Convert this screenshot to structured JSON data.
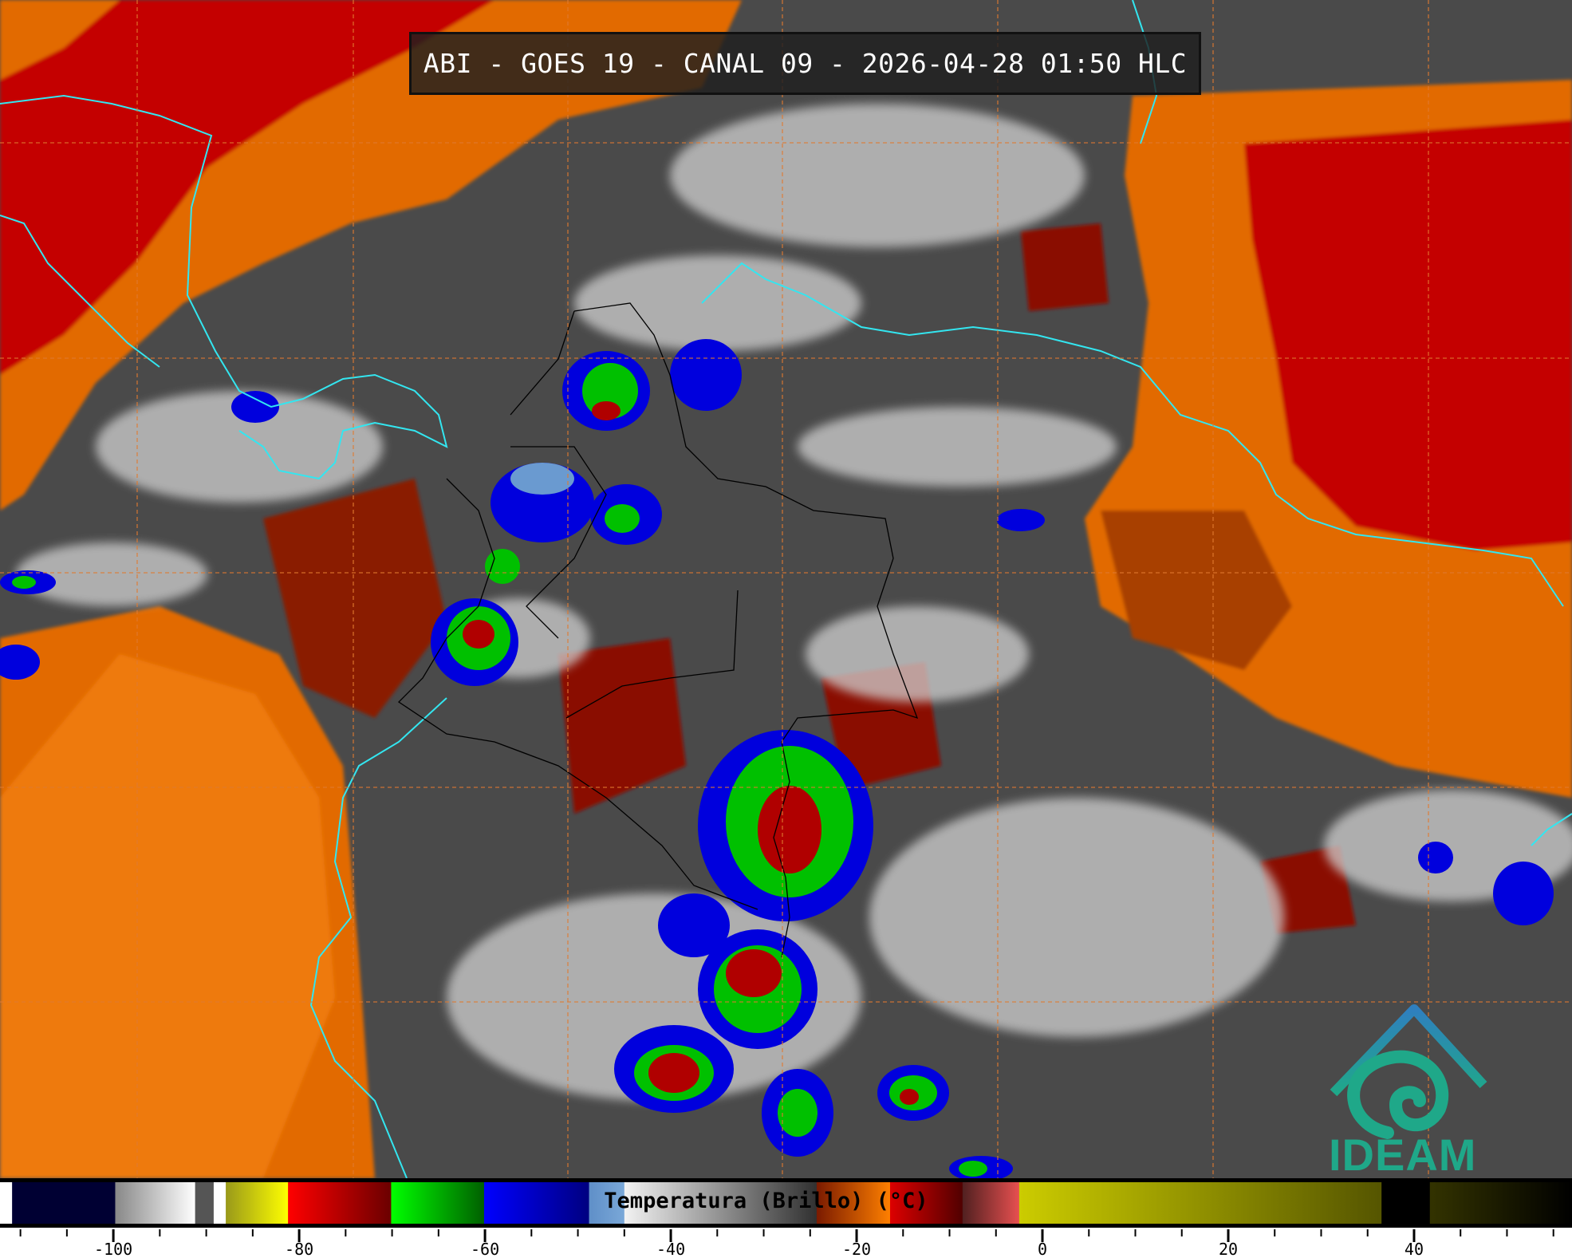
{
  "title": "ABI - GOES 19 - CANAL 09 - 2026-04-28 01:50 HLC",
  "logo": {
    "text": "IDEAM",
    "colors": [
      "#2f7fbf",
      "#1fa889"
    ]
  },
  "colorbar": {
    "label": "Temperatura (Brillo) (°C)",
    "range": [
      -112.2,
      57
    ],
    "tick_step": 5,
    "tick_labels": [
      "-100",
      "-80",
      "-60",
      "-40",
      "-20",
      "0",
      "20",
      "40"
    ],
    "tick_label_values": [
      -100,
      -80,
      -60,
      -40,
      -20,
      0,
      20,
      40
    ],
    "segments": [
      {
        "from": -112.2,
        "to": -110.9,
        "c1": "#ffffff",
        "c2": "#ffffff"
      },
      {
        "from": -110.9,
        "to": -99.8,
        "c1": "#000033",
        "c2": "#000033"
      },
      {
        "from": -99.8,
        "to": -91.2,
        "c1": "#888888",
        "c2": "#ffffff"
      },
      {
        "from": -91.2,
        "to": -89.2,
        "c1": "#555555",
        "c2": "#555555"
      },
      {
        "from": -89.2,
        "to": -87.9,
        "c1": "#ffffff",
        "c2": "#ffffff"
      },
      {
        "from": -87.9,
        "to": -81.2,
        "c1": "#99991a",
        "c2": "#ffff00"
      },
      {
        "from": -81.2,
        "to": -70.1,
        "c1": "#ff0000",
        "c2": "#6a0000"
      },
      {
        "from": -70.1,
        "to": -60.1,
        "c1": "#00ff00",
        "c2": "#005f00"
      },
      {
        "from": -60.1,
        "to": -48.8,
        "c1": "#0000ff",
        "c2": "#000080"
      },
      {
        "from": -48.8,
        "to": -45.0,
        "c1": "#5f8fc8",
        "c2": "#7aa8d8"
      },
      {
        "from": -45.0,
        "to": -24.3,
        "c1": "#f2f2f2",
        "c2": "#303030"
      },
      {
        "from": -24.3,
        "to": -16.4,
        "c1": "#7a1a00",
        "c2": "#ff8000"
      },
      {
        "from": -16.4,
        "to": -8.6,
        "c1": "#dd0000",
        "c2": "#500000"
      },
      {
        "from": -8.6,
        "to": -2.5,
        "c1": "#502020",
        "c2": "#e85050"
      },
      {
        "from": -2.5,
        "to": 36.5,
        "c1": "#cccc00",
        "c2": "#555500"
      },
      {
        "from": 36.5,
        "to": 41.7,
        "c1": "#000000",
        "c2": "#000000"
      },
      {
        "from": 41.7,
        "to": 57,
        "c1": "#333300",
        "c2": "#000000"
      }
    ]
  },
  "map": {
    "colors": {
      "background": "#4a4a4a",
      "cloud": "#d8d8d8",
      "warm_orange": "#e26b00",
      "warm_red": "#c40000",
      "dark_red": "#7a0000",
      "coast": "#33e6f0",
      "border": "#000000",
      "grid": "#e07a30"
    }
  }
}
